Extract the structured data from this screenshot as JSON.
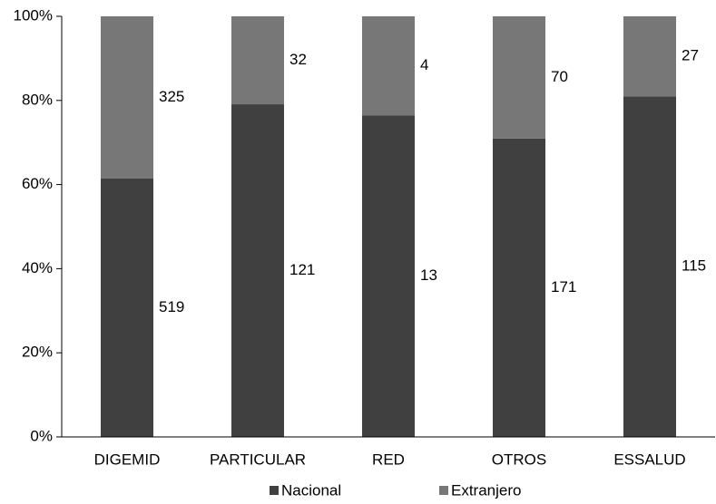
{
  "chart_data": {
    "type": "bar",
    "stack": "percent",
    "categories": [
      "DIGEMID",
      "PARTICULAR",
      "RED",
      "OTROS",
      "ESSALUD"
    ],
    "series": [
      {
        "name": "Nacional",
        "color": "#404040",
        "values": [
          519,
          121,
          13,
          171,
          115
        ]
      },
      {
        "name": "Extranjero",
        "color": "#777777",
        "values": [
          325,
          32,
          4,
          70,
          27
        ]
      }
    ],
    "ylim": [
      0,
      100
    ],
    "yticks": [
      {
        "value": 0,
        "label": "0%"
      },
      {
        "value": 20,
        "label": "20%"
      },
      {
        "value": 40,
        "label": "40%"
      },
      {
        "value": 60,
        "label": "60%"
      },
      {
        "value": 80,
        "label": "80%"
      },
      {
        "value": 100,
        "label": "100%"
      }
    ],
    "grid": false,
    "legend": "bottom"
  }
}
